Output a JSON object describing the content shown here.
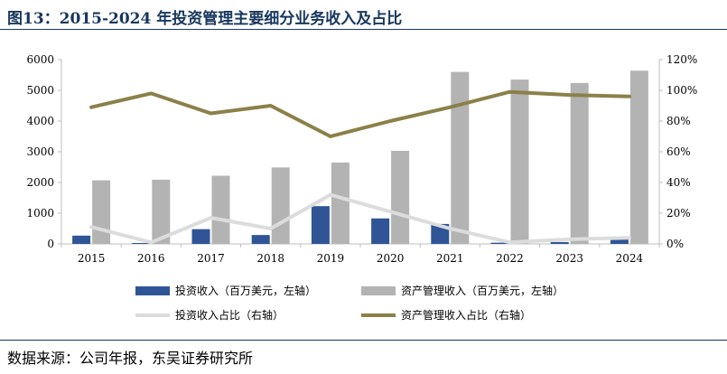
{
  "figure": {
    "title": "图13：2015-2024 年投资管理主要细分业务收入及占比",
    "source": "数据来源：公司年报，东吴证券研究所"
  },
  "colors": {
    "title": "#17375e",
    "invest_bar": "#2f5597",
    "asset_bar": "#b3b3b3",
    "invest_line": "#dcdcdc",
    "asset_line": "#8b8048",
    "axis": "#bfbfbf"
  },
  "chart_data": {
    "type": "bar",
    "categories": [
      "2015",
      "2016",
      "2017",
      "2018",
      "2019",
      "2020",
      "2021",
      "2022",
      "2023",
      "2024"
    ],
    "y_left": {
      "min": 0,
      "max": 6000,
      "ticks": [
        0,
        1000,
        2000,
        3000,
        4000,
        5000,
        6000
      ]
    },
    "y_right": {
      "min": 0,
      "max": 120,
      "ticks": [
        "0%",
        "20%",
        "40%",
        "60%",
        "80%",
        "100%",
        "120%"
      ]
    },
    "grid": false,
    "legend_position": "bottom",
    "series": [
      {
        "name": "投资收入（百万美元，左轴）",
        "type": "bar",
        "axis": "left",
        "values": [
          270,
          30,
          480,
          290,
          1230,
          830,
          650,
          40,
          60,
          220
        ]
      },
      {
        "name": "资产管理收入（百万美元，左轴）",
        "type": "bar",
        "axis": "left",
        "values": [
          2070,
          2090,
          2220,
          2490,
          2650,
          3030,
          5600,
          5350,
          5240,
          5640
        ]
      },
      {
        "name": "投资收入占比（右轴）",
        "type": "line",
        "axis": "right",
        "values": [
          11,
          1,
          17,
          10,
          32,
          21,
          10,
          1,
          3,
          4
        ]
      },
      {
        "name": "资产管理收入占比（右轴）",
        "type": "line",
        "axis": "right",
        "values": [
          89,
          98,
          85,
          90,
          70,
          80,
          89,
          99,
          97,
          96
        ]
      }
    ]
  }
}
